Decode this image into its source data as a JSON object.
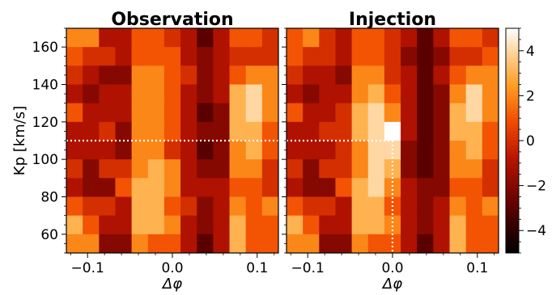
{
  "chart_data": {
    "type": "heatmap",
    "shared_ylabel": "Kp [km/s]",
    "y_ticks": [
      "60",
      "80",
      "100",
      "120",
      "140",
      "160"
    ],
    "y_range": [
      50,
      170
    ],
    "x_range": [
      -0.125,
      0.125
    ],
    "x_ticks": [
      "−0.1",
      "0.0",
      "0.1"
    ],
    "x_tick_values": [
      -0.1,
      0.0,
      0.1
    ],
    "colorbar": {
      "range": [
        -5,
        5
      ],
      "ticks": [
        "−4",
        "−2",
        "0",
        "2",
        "4"
      ],
      "tick_values": [
        -4,
        -2,
        0,
        2,
        4
      ],
      "colormap": "gist_heat"
    },
    "panels": [
      {
        "title": "Observation",
        "xlabel": "Δφ",
        "marker": {
          "x": null,
          "y": 110
        },
        "grid": [
          [
            2,
            2,
            -1,
            -1,
            1,
            1,
            0,
            -1,
            -3,
            -1,
            1,
            1,
            0
          ],
          [
            1,
            0,
            0,
            -1,
            1,
            1,
            1,
            -1,
            -2,
            -1,
            0,
            0,
            0
          ],
          [
            0,
            -1,
            -2,
            -2,
            2,
            2,
            1,
            0,
            -2,
            -1,
            1,
            2,
            2
          ],
          [
            -1,
            -2,
            -1,
            -1,
            2,
            2,
            1,
            -1,
            -2,
            -1,
            3,
            4,
            2
          ],
          [
            1,
            -1,
            -1,
            -1,
            2,
            2,
            1,
            -1,
            -3,
            -2,
            3,
            4,
            2
          ],
          [
            -1,
            -1,
            0,
            -2,
            2,
            2,
            1,
            -1,
            -2,
            -2,
            3,
            3,
            1
          ],
          [
            -1,
            -1,
            -1,
            -2,
            2,
            2,
            0,
            -1,
            -3,
            -2,
            2,
            3,
            1
          ],
          [
            0,
            -2,
            0,
            0,
            2,
            3,
            2,
            -1,
            -2,
            -2,
            2,
            2,
            0
          ],
          [
            -1,
            -2,
            -2,
            1,
            3,
            3,
            2,
            -1,
            -1,
            -1,
            1,
            1,
            0
          ],
          [
            1,
            0,
            0,
            -1,
            3,
            3,
            1,
            0,
            -2,
            -1,
            2,
            1,
            2
          ],
          [
            3,
            1,
            -1,
            -1,
            3,
            3,
            2,
            -1,
            -2,
            -1,
            3,
            1,
            1
          ],
          [
            2,
            2,
            -2,
            -2,
            2,
            1,
            1,
            -1,
            -3,
            -1,
            3,
            1,
            1
          ]
        ]
      },
      {
        "title": "Injection",
        "xlabel": "Δφ",
        "marker": {
          "x": 0.0,
          "y": 110
        },
        "grid": [
          [
            1,
            2,
            0,
            -1,
            1,
            1,
            0,
            -1,
            -3,
            -1,
            1,
            1,
            0
          ],
          [
            1,
            0,
            0,
            -1,
            1,
            1,
            0,
            -2,
            -3,
            -2,
            0,
            0,
            1
          ],
          [
            0,
            -1,
            -1,
            -2,
            2,
            2,
            0,
            -1,
            -3,
            -1,
            1,
            2,
            2
          ],
          [
            -1,
            -2,
            -1,
            -1,
            2,
            3,
            1,
            -1,
            -3,
            -2,
            2,
            4,
            2
          ],
          [
            1,
            -1,
            -1,
            0,
            3,
            4,
            2,
            -1,
            -3,
            -2,
            3,
            4,
            2
          ],
          [
            -1,
            -1,
            0,
            0,
            3,
            4,
            5,
            -1,
            -3,
            -2,
            3,
            3,
            1
          ],
          [
            -1,
            -1,
            -1,
            0,
            2,
            4,
            4,
            -2,
            -3,
            -2,
            2,
            3,
            1
          ],
          [
            0,
            -2,
            0,
            0,
            2,
            4,
            3,
            -2,
            -3,
            -2,
            2,
            2,
            0
          ],
          [
            -1,
            -2,
            -2,
            1,
            3,
            4,
            2,
            -1,
            -2,
            -2,
            1,
            1,
            0
          ],
          [
            1,
            0,
            0,
            -1,
            3,
            3,
            1,
            -1,
            -2,
            -1,
            2,
            1,
            2
          ],
          [
            3,
            1,
            -1,
            -1,
            3,
            3,
            2,
            -1,
            -2,
            -1,
            3,
            1,
            1
          ],
          [
            2,
            2,
            -2,
            -2,
            2,
            1,
            1,
            -1,
            -3,
            -1,
            3,
            1,
            1
          ]
        ]
      }
    ]
  }
}
